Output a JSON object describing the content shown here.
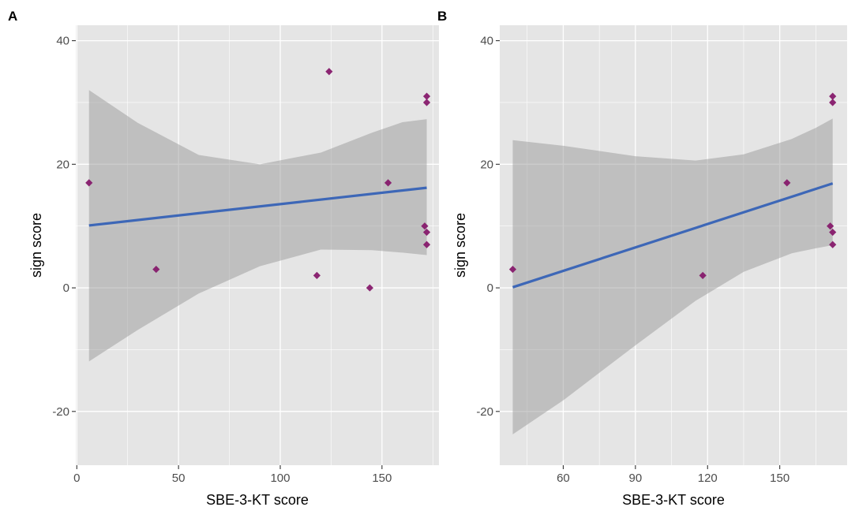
{
  "chart_data": [
    {
      "type": "scatter",
      "panel_label": "A",
      "xlabel": "SBE-3-KT score",
      "ylabel": "sign score",
      "xlim": [
        -0.5,
        178
      ],
      "ylim": [
        -28.7,
        42.5
      ],
      "x_ticks": [
        0,
        50,
        100,
        150
      ],
      "y_ticks": [
        -20,
        0,
        20,
        40
      ],
      "grid": true,
      "points": [
        {
          "x": 6,
          "y": 17
        },
        {
          "x": 39,
          "y": 3
        },
        {
          "x": 118,
          "y": 2
        },
        {
          "x": 124,
          "y": 35
        },
        {
          "x": 144,
          "y": 0
        },
        {
          "x": 153,
          "y": 17
        },
        {
          "x": 171,
          "y": 10
        },
        {
          "x": 172,
          "y": 31
        },
        {
          "x": 172,
          "y": 30
        },
        {
          "x": 172,
          "y": 9
        },
        {
          "x": 172,
          "y": 7
        }
      ],
      "fit": {
        "x": [
          6,
          172
        ],
        "y": [
          10.1,
          16.2
        ]
      },
      "ci_band": {
        "x": [
          6,
          30,
          60,
          90,
          120,
          145,
          160,
          172
        ],
        "lower": [
          -11.9,
          -6.8,
          -0.9,
          3.5,
          6.2,
          6.1,
          5.7,
          5.3
        ],
        "upper": [
          32.0,
          26.7,
          21.5,
          20.0,
          21.9,
          25.1,
          26.8,
          27.3
        ]
      }
    },
    {
      "type": "scatter",
      "panel_label": "B",
      "xlabel": "SBE-3-KT score",
      "ylabel": "sign score",
      "xlim": [
        33.6,
        178
      ],
      "ylim": [
        -28.7,
        42.5
      ],
      "x_ticks": [
        60,
        90,
        120,
        150
      ],
      "y_ticks": [
        -20,
        0,
        20,
        40
      ],
      "grid": true,
      "points": [
        {
          "x": 39,
          "y": 3
        },
        {
          "x": 118,
          "y": 2
        },
        {
          "x": 153,
          "y": 17
        },
        {
          "x": 171,
          "y": 10
        },
        {
          "x": 172,
          "y": 31
        },
        {
          "x": 172,
          "y": 30
        },
        {
          "x": 172,
          "y": 9
        },
        {
          "x": 172,
          "y": 7
        }
      ],
      "fit": {
        "x": [
          39,
          172
        ],
        "y": [
          0.1,
          16.9
        ]
      },
      "ci_band": {
        "x": [
          39,
          60,
          90,
          115,
          135,
          155,
          165,
          172
        ],
        "lower": [
          -23.7,
          -18.2,
          -9.3,
          -2.1,
          2.6,
          5.6,
          6.4,
          6.9
        ],
        "upper": [
          23.9,
          23.0,
          21.3,
          20.6,
          21.6,
          24.1,
          25.9,
          27.4
        ]
      }
    }
  ],
  "colors": {
    "panel_bg": "#e5e5e5",
    "grid": "#ffffff",
    "band": "#999999",
    "fit_line": "#3d67b7",
    "point": "#861a6c",
    "tick": "#333333"
  }
}
